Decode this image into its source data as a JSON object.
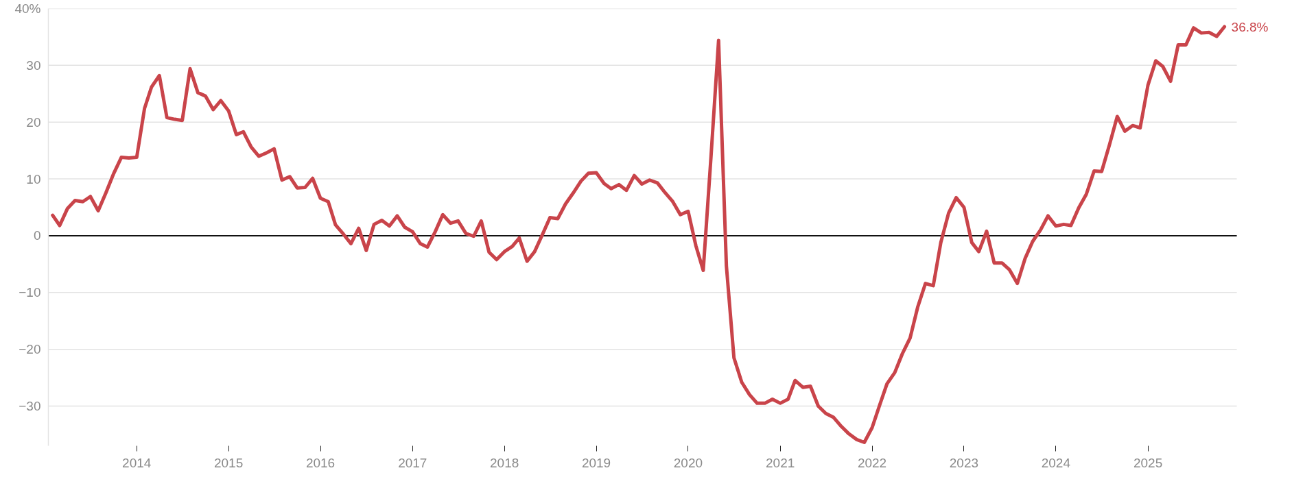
{
  "chart_data": {
    "type": "line",
    "x": [
      "2013-02",
      "2013-03",
      "2013-04",
      "2013-05",
      "2013-06",
      "2013-07",
      "2013-08",
      "2013-09",
      "2013-10",
      "2013-11",
      "2013-12",
      "2014-01",
      "2014-02",
      "2014-03",
      "2014-04",
      "2014-05",
      "2014-06",
      "2014-07",
      "2014-08",
      "2014-09",
      "2014-10",
      "2014-11",
      "2014-12",
      "2015-01",
      "2015-02",
      "2015-03",
      "2015-04",
      "2015-05",
      "2015-06",
      "2015-07",
      "2015-08",
      "2015-09",
      "2015-10",
      "2015-11",
      "2015-12",
      "2016-01",
      "2016-02",
      "2016-03",
      "2016-04",
      "2016-05",
      "2016-06",
      "2016-07",
      "2016-08",
      "2016-09",
      "2016-10",
      "2016-11",
      "2016-12",
      "2017-01",
      "2017-02",
      "2017-03",
      "2017-04",
      "2017-05",
      "2017-06",
      "2017-07",
      "2017-08",
      "2017-09",
      "2017-10",
      "2017-11",
      "2017-12",
      "2018-01",
      "2018-02",
      "2018-03",
      "2018-04",
      "2018-05",
      "2018-06",
      "2018-07",
      "2018-08",
      "2018-09",
      "2018-10",
      "2018-11",
      "2018-12",
      "2019-01",
      "2019-02",
      "2019-03",
      "2019-04",
      "2019-05",
      "2019-06",
      "2019-07",
      "2019-08",
      "2019-09",
      "2019-10",
      "2019-11",
      "2019-12",
      "2020-01",
      "2020-02",
      "2020-03",
      "2020-04",
      "2020-05",
      "2020-06",
      "2020-07",
      "2020-08",
      "2020-09",
      "2020-10",
      "2020-11",
      "2020-12",
      "2021-01",
      "2021-02",
      "2021-03",
      "2021-04",
      "2021-05",
      "2021-06",
      "2021-07",
      "2021-08",
      "2021-09",
      "2021-10",
      "2021-11",
      "2021-12",
      "2022-01",
      "2022-02",
      "2022-03",
      "2022-04",
      "2022-05",
      "2022-06",
      "2022-07",
      "2022-08",
      "2022-09",
      "2022-10",
      "2022-11",
      "2022-12",
      "2023-01",
      "2023-02",
      "2023-03",
      "2023-04",
      "2023-05",
      "2023-06",
      "2023-07",
      "2023-08",
      "2023-09",
      "2023-10",
      "2023-11",
      "2023-12",
      "2024-01",
      "2024-02",
      "2024-03",
      "2024-04",
      "2024-05",
      "2024-06",
      "2024-07",
      "2024-08",
      "2024-09",
      "2024-10",
      "2024-11",
      "2024-12",
      "2025-01",
      "2025-02",
      "2025-03",
      "2025-04",
      "2025-05",
      "2025-06",
      "2025-07",
      "2025-08",
      "2025-09",
      "2025-10",
      "2025-11"
    ],
    "series": [
      {
        "color": "#c9444a",
        "values": [
          3.6,
          1.8,
          4.8,
          6.2,
          6.0,
          6.9,
          4.4,
          7.6,
          10.9,
          13.8,
          13.7,
          13.8,
          22.4,
          26.2,
          28.2,
          20.8,
          20.5,
          20.3,
          29.4,
          25.2,
          24.6,
          22.2,
          23.8,
          22.0,
          17.8,
          18.3,
          15.6,
          14.0,
          14.6,
          15.3,
          9.8,
          10.4,
          8.4,
          8.5,
          10.1,
          6.6,
          6.0,
          1.9,
          0.3,
          -1.4,
          1.3,
          -2.6,
          2.0,
          2.7,
          1.7,
          3.5,
          1.5,
          0.7,
          -1.4,
          -2.0,
          0.7,
          3.7,
          2.2,
          2.6,
          0.4,
          -0.1,
          2.6,
          -2.9,
          -4.2,
          -2.8,
          -1.9,
          -0.4,
          -4.5,
          -2.8,
          0.2,
          3.2,
          3.0,
          5.6,
          7.5,
          9.6,
          11.0,
          11.1,
          9.2,
          8.3,
          9.0,
          8.0,
          10.6,
          9.1,
          9.8,
          9.3,
          7.6,
          6.0,
          3.7,
          4.3,
          -1.8,
          -6.1,
          14.0,
          34.4,
          -5.3,
          -21.5,
          -25.8,
          -28.0,
          -29.5,
          -29.5,
          -28.8,
          -29.5,
          -28.8,
          -25.5,
          -26.7,
          -26.5,
          -30.0,
          -31.3,
          -32.0,
          -33.6,
          -34.9,
          -35.9,
          -36.4,
          -33.8,
          -29.7,
          -26.1,
          -24.1,
          -20.8,
          -18.0,
          -12.6,
          -8.4,
          -8.8,
          -1.2,
          4.0,
          6.7,
          5.0,
          -1.2,
          -2.8,
          0.8,
          -4.8,
          -4.8,
          -6.0,
          -8.4,
          -4.0,
          -1.0,
          1.0,
          3.5,
          1.7,
          2.0,
          1.8,
          4.9,
          7.3,
          11.4,
          11.3,
          16.0,
          21.0,
          18.4,
          19.4,
          19.0,
          26.5,
          30.8,
          29.8,
          27.2,
          33.6,
          33.6,
          36.6,
          35.7,
          35.8,
          35.1,
          36.8
        ]
      }
    ],
    "xlim": [
      "2013-01-15",
      "2025-12-20"
    ],
    "xticks": [
      "2014",
      "2015",
      "2016",
      "2017",
      "2018",
      "2019",
      "2020",
      "2021",
      "2022",
      "2023",
      "2024",
      "2025"
    ],
    "ylim": [
      -37,
      40
    ],
    "yticks": [
      {
        "value": -30,
        "label": "−30"
      },
      {
        "value": -20,
        "label": "−20"
      },
      {
        "value": -10,
        "label": "−10"
      },
      0,
      10,
      20,
      30,
      {
        "value": 40,
        "label": "40%"
      }
    ],
    "ref_lines": [
      {
        "axis": "y",
        "value": 0,
        "color": "#111111"
      }
    ],
    "annotations": [
      {
        "text": "36.8%",
        "x": "2025-11",
        "y": 36.8
      }
    ],
    "grid": "y",
    "marker": "none",
    "line_style": "solid"
  }
}
